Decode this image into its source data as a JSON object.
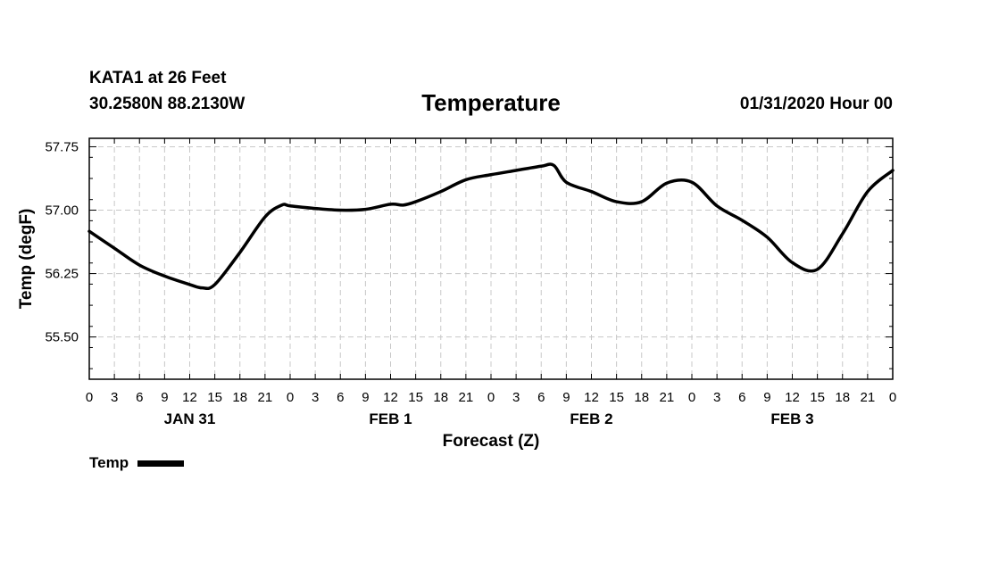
{
  "header": {
    "station": "KATA1 at 26 Feet",
    "coordinates": "30.2580N 88.2130W",
    "title": "Temperature",
    "datetime": "01/31/2020 Hour 00"
  },
  "legend": {
    "label": "Temp"
  },
  "colors": {
    "line": "#000000",
    "grid": "#c8c8c8"
  },
  "chart_data": {
    "type": "line",
    "title": "Temperature",
    "xlabel": "Forecast (Z)",
    "ylabel": "Temp (degF)",
    "xlim": [
      0,
      96
    ],
    "ylim": [
      55.0,
      57.85
    ],
    "yticks": [
      55.5,
      56.25,
      57.0,
      57.75
    ],
    "ytick_labels": [
      "55.50",
      "56.25",
      "57.00",
      "57.75"
    ],
    "xticks": [
      0,
      3,
      6,
      9,
      12,
      15,
      18,
      21,
      24,
      27,
      30,
      33,
      36,
      39,
      42,
      45,
      48,
      51,
      54,
      57,
      60,
      63,
      66,
      69,
      72,
      75,
      78,
      81,
      84,
      87,
      90,
      93,
      96
    ],
    "xtick_labels": [
      "0",
      "3",
      "6",
      "9",
      "12",
      "15",
      "18",
      "21",
      "0",
      "3",
      "6",
      "9",
      "12",
      "15",
      "18",
      "21",
      "0",
      "3",
      "6",
      "9",
      "12",
      "15",
      "18",
      "21",
      "0",
      "3",
      "6",
      "9",
      "12",
      "15",
      "18",
      "21",
      "0"
    ],
    "day_labels": [
      {
        "x": 12,
        "label": "JAN 31"
      },
      {
        "x": 36,
        "label": "FEB 1"
      },
      {
        "x": 60,
        "label": "FEB 2"
      },
      {
        "x": 84,
        "label": "FEB 3"
      }
    ],
    "grid": true,
    "series": [
      {
        "name": "Temp",
        "x": [
          0,
          3,
          6,
          9,
          12,
          13.5,
          15,
          18,
          21,
          23,
          24,
          27,
          30,
          33,
          36,
          37.5,
          39,
          42,
          45,
          48,
          51,
          54,
          55.5,
          57,
          60,
          63,
          66,
          69,
          72,
          75,
          78,
          81,
          84,
          87,
          90,
          93,
          96
        ],
        "values": [
          56.75,
          56.55,
          56.35,
          56.22,
          56.12,
          56.08,
          56.12,
          56.5,
          56.92,
          57.06,
          57.05,
          57.02,
          57.0,
          57.01,
          57.07,
          57.06,
          57.1,
          57.22,
          57.36,
          57.42,
          57.47,
          57.52,
          57.53,
          57.33,
          57.22,
          57.1,
          57.1,
          57.32,
          57.33,
          57.05,
          56.88,
          56.68,
          56.38,
          56.3,
          56.72,
          57.22,
          57.47
        ]
      }
    ]
  }
}
